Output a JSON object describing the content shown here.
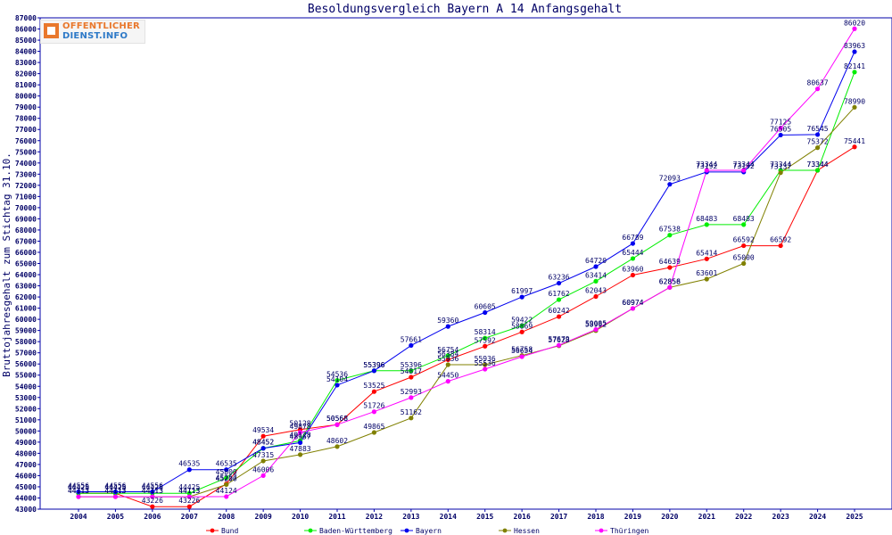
{
  "chart_data": {
    "type": "line",
    "title": "Besoldungsvergleich Bayern A 14 Anfangsgehalt",
    "xlabel": "",
    "ylabel": "Bruttojahresgehalt zum Stichtag 31.10.",
    "x": [
      2004,
      2005,
      2006,
      2007,
      2008,
      2009,
      2010,
      2011,
      2012,
      2013,
      2014,
      2015,
      2016,
      2017,
      2018,
      2019,
      2020,
      2021,
      2022,
      2023,
      2024,
      2025
    ],
    "ylim": [
      43000,
      87000
    ],
    "ytick_step": 1000,
    "grid": false,
    "legend_position": "bottom",
    "series": [
      {
        "name": "Bund",
        "color": "#ff0000",
        "values": [
          44425,
          44425,
          43226,
          43226,
          45257,
          49534,
          50128,
          50568,
          53525,
          54817,
          56384,
          57592,
          58869,
          60242,
          62043,
          63960,
          64639,
          65414,
          66592,
          66592,
          73344,
          75441
        ]
      },
      {
        "name": "Baden-Württemberg",
        "color": "#00ee00",
        "values": [
          44425,
          44425,
          44425,
          44425,
          45800,
          48452,
          49128,
          54536,
          55396,
          55396,
          56754,
          58314,
          59422,
          61762,
          63414,
          65444,
          67538,
          68483,
          68483,
          73344,
          73344,
          82141
        ]
      },
      {
        "name": "Bayern",
        "color": "#0000ee",
        "values": [
          44556,
          44556,
          44556,
          46535,
          46535,
          48452,
          48957,
          54104,
          55396,
          57661,
          59360,
          60605,
          61997,
          63236,
          64720,
          66789,
          72093,
          73192,
          73192,
          76505,
          76545,
          83963
        ]
      },
      {
        "name": "Hessen",
        "color": "#808000",
        "values": [
          44113,
          44113,
          44113,
          44113,
          45200,
          47315,
          47883,
          48602,
          49865,
          51162,
          55936,
          55936,
          56758,
          57628,
          58992,
          60974,
          62856,
          63601,
          65000,
          73137,
          75372,
          78990
        ]
      },
      {
        "name": "Thüringen",
        "color": "#ff00ff",
        "values": [
          44113,
          44113,
          44113,
          44113,
          44124,
          46006,
          49878,
          50568,
          51726,
          52993,
          54450,
          55536,
          56654,
          57679,
          59085,
          60974,
          62858,
          73344,
          73344,
          77125,
          80637,
          86020
        ]
      }
    ]
  },
  "branding": {
    "logo_line1": "OFFENTLICHER",
    "logo_line2": "DIENST.INFO"
  }
}
